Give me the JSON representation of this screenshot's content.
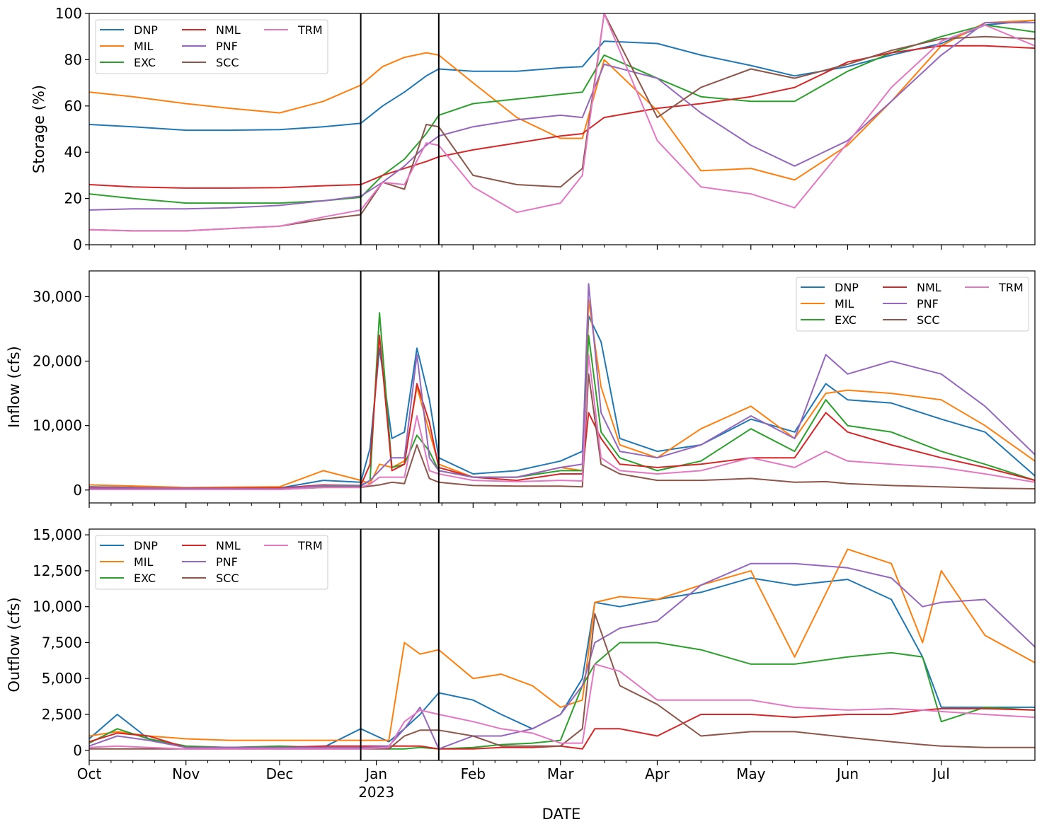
{
  "chart_data": [
    {
      "type": "line",
      "ylabel": "Storage (%)",
      "xlabel": "",
      "ylim": [
        0,
        100
      ],
      "yticks": [
        "0",
        "20",
        "40",
        "60",
        "80",
        "100"
      ],
      "legend_position": "upper-left",
      "legend_columns": 3,
      "x": [
        "2022-10-01",
        "2022-10-15",
        "2022-11-01",
        "2022-11-15",
        "2022-12-01",
        "2022-12-15",
        "2022-12-27",
        "2023-01-03",
        "2023-01-10",
        "2023-01-17",
        "2023-01-21",
        "2023-02-01",
        "2023-02-15",
        "2023-03-01",
        "2023-03-08",
        "2023-03-15",
        "2023-04-01",
        "2023-04-15",
        "2023-05-01",
        "2023-05-15",
        "2023-06-01",
        "2023-06-15",
        "2023-07-01",
        "2023-07-15",
        "2023-07-31"
      ],
      "series": [
        {
          "name": "DNP",
          "color": "#1f77b4",
          "values": [
            52,
            51,
            49.5,
            49.5,
            49.8,
            51,
            52.5,
            60,
            66,
            73,
            76,
            75,
            75,
            76.5,
            77,
            88,
            87,
            82,
            77.5,
            73,
            77,
            82,
            87,
            95,
            97
          ]
        },
        {
          "name": "MIL",
          "color": "#ff7f0e",
          "values": [
            66,
            64,
            61,
            59,
            57,
            62,
            69,
            77,
            81,
            83,
            82,
            70,
            55,
            46,
            46,
            80,
            58,
            32,
            33,
            28,
            43,
            62,
            86,
            96,
            97
          ]
        },
        {
          "name": "EXC",
          "color": "#2ca02c",
          "values": [
            22,
            20,
            18,
            18,
            18,
            19,
            20.5,
            30,
            37,
            48,
            56,
            61,
            63,
            65,
            66,
            82,
            72,
            64,
            62,
            62,
            75,
            83,
            90,
            95,
            92
          ]
        },
        {
          "name": "NML",
          "color": "#d62728",
          "values": [
            26,
            25,
            24.5,
            24.5,
            24.7,
            25.5,
            26,
            30,
            33,
            36,
            38,
            41,
            44,
            47,
            48,
            55,
            59,
            61,
            64,
            68,
            79,
            83,
            86,
            86,
            85
          ]
        },
        {
          "name": "PNF",
          "color": "#9467bd",
          "values": [
            15,
            15.5,
            15.5,
            16,
            17,
            19,
            21,
            27,
            34,
            43,
            47,
            51,
            54,
            56,
            55,
            78,
            72,
            57,
            43,
            34,
            45,
            62,
            82,
            96,
            96
          ]
        },
        {
          "name": "SCC",
          "color": "#8c564b",
          "values": [
            6.5,
            6,
            6,
            7,
            8,
            11,
            13,
            27,
            24,
            52,
            51,
            30,
            26,
            25,
            33,
            100,
            55,
            68,
            76,
            72,
            78,
            84,
            89,
            90,
            89
          ]
        },
        {
          "name": "TRM",
          "color": "#e377c2",
          "values": [
            6.5,
            6,
            6,
            7,
            8,
            12,
            15,
            27,
            26,
            44,
            43,
            25,
            14,
            18,
            30,
            100,
            45,
            25,
            22,
            16,
            44,
            68,
            88,
            95,
            86
          ]
        }
      ]
    },
    {
      "type": "line",
      "ylabel": "Inflow (cfs)",
      "xlabel": "",
      "ylim": [
        -2000,
        34000
      ],
      "yticks": [
        "0",
        "10,000",
        "20,000",
        "30,000"
      ],
      "legend_position": "upper-right",
      "legend_columns": 3,
      "x": [
        "2022-10-01",
        "2022-11-01",
        "2022-12-01",
        "2022-12-15",
        "2022-12-27",
        "2022-12-30",
        "2023-01-02",
        "2023-01-06",
        "2023-01-10",
        "2023-01-14",
        "2023-01-18",
        "2023-01-21",
        "2023-02-01",
        "2023-02-15",
        "2023-03-01",
        "2023-03-08",
        "2023-03-10",
        "2023-03-14",
        "2023-03-20",
        "2023-04-01",
        "2023-04-15",
        "2023-05-01",
        "2023-05-15",
        "2023-05-25",
        "2023-06-01",
        "2023-06-15",
        "2023-07-01",
        "2023-07-15",
        "2023-07-31"
      ],
      "series": [
        {
          "name": "DNP",
          "color": "#1f77b4",
          "values": [
            500,
            300,
            300,
            1500,
            1200,
            6500,
            22000,
            8000,
            9000,
            22000,
            14000,
            5000,
            2500,
            3000,
            4500,
            6000,
            27000,
            23000,
            8000,
            6000,
            7000,
            11000,
            9000,
            16500,
            14000,
            13500,
            11000,
            9000,
            2200
          ]
        },
        {
          "name": "MIL",
          "color": "#ff7f0e",
          "values": [
            800,
            400,
            500,
            3000,
            1500,
            1000,
            4000,
            3500,
            4500,
            16000,
            9000,
            4000,
            2000,
            2000,
            3500,
            3000,
            29500,
            16000,
            7000,
            5000,
            9500,
            13000,
            8000,
            15000,
            15500,
            15000,
            14000,
            10000,
            4500
          ]
        },
        {
          "name": "EXC",
          "color": "#2ca02c",
          "values": [
            300,
            200,
            200,
            600,
            600,
            1500,
            27500,
            3500,
            4000,
            8500,
            6000,
            3000,
            2000,
            2000,
            3000,
            3000,
            24000,
            9000,
            5000,
            3000,
            4500,
            9500,
            6000,
            14000,
            10000,
            9000,
            6000,
            4000,
            1500
          ]
        },
        {
          "name": "NML",
          "color": "#d62728",
          "values": [
            400,
            300,
            300,
            800,
            700,
            4000,
            24000,
            3000,
            4000,
            16500,
            10500,
            3500,
            2000,
            1500,
            2500,
            2500,
            12000,
            8000,
            4000,
            3500,
            4000,
            5000,
            5000,
            12000,
            9000,
            7000,
            5000,
            3500,
            1500
          ]
        },
        {
          "name": "PNF",
          "color": "#9467bd",
          "values": [
            300,
            300,
            200,
            700,
            700,
            1500,
            3000,
            5000,
            5000,
            21000,
            5000,
            3000,
            2000,
            2000,
            3500,
            4000,
            32000,
            12000,
            6000,
            5000,
            7000,
            11500,
            8000,
            21000,
            18000,
            20000,
            18000,
            13000,
            5500
          ]
        },
        {
          "name": "SCC",
          "color": "#8c564b",
          "values": [
            100,
            100,
            100,
            400,
            400,
            600,
            800,
            1200,
            1000,
            7000,
            1800,
            1200,
            700,
            600,
            600,
            500,
            18000,
            4000,
            2500,
            1500,
            1500,
            1800,
            1200,
            1300,
            1000,
            700,
            500,
            300,
            200
          ]
        },
        {
          "name": "TRM",
          "color": "#e377c2",
          "values": [
            100,
            100,
            100,
            400,
            400,
            900,
            2000,
            2000,
            2000,
            11500,
            3000,
            2500,
            1500,
            1300,
            1500,
            1400,
            21000,
            5000,
            3000,
            2500,
            3000,
            5000,
            3500,
            6000,
            4500,
            4000,
            3500,
            2500,
            1200
          ]
        }
      ]
    },
    {
      "type": "line",
      "ylabel": "Outflow (cfs)",
      "xlabel": "DATE",
      "ylim": [
        -700,
        15400
      ],
      "yticks": [
        "0",
        "2,500",
        "5,000",
        "7,500",
        "10,000",
        "12,500",
        "15,000"
      ],
      "xticks": [
        "Oct",
        "Nov",
        "Dec",
        "Jan",
        "Feb",
        "Mar",
        "Apr",
        "May",
        "Jun",
        "Jul"
      ],
      "xtick_sublabel": "2023",
      "legend_position": "upper-left",
      "legend_columns": 3,
      "x": [
        "2022-10-01",
        "2022-10-10",
        "2022-10-20",
        "2022-11-01",
        "2022-11-15",
        "2022-12-01",
        "2022-12-15",
        "2022-12-27",
        "2023-01-05",
        "2023-01-10",
        "2023-01-15",
        "2023-01-21",
        "2023-02-01",
        "2023-02-10",
        "2023-02-20",
        "2023-03-01",
        "2023-03-08",
        "2023-03-12",
        "2023-03-20",
        "2023-04-01",
        "2023-04-15",
        "2023-05-01",
        "2023-05-15",
        "2023-06-01",
        "2023-06-15",
        "2023-06-25",
        "2023-07-01",
        "2023-07-15",
        "2023-07-31"
      ],
      "series": [
        {
          "name": "DNP",
          "color": "#1f77b4",
          "values": [
            800,
            2500,
            800,
            200,
            200,
            200,
            200,
            1500,
            600,
            1500,
            2500,
            4000,
            3500,
            2500,
            1500,
            2500,
            5000,
            10300,
            10000,
            10500,
            11000,
            12000,
            11500,
            11900,
            10500,
            6500,
            3000,
            3000,
            3000
          ]
        },
        {
          "name": "MIL",
          "color": "#ff7f0e",
          "values": [
            1000,
            1300,
            1000,
            800,
            700,
            700,
            700,
            700,
            700,
            7500,
            6700,
            7000,
            5000,
            5300,
            4500,
            3000,
            3500,
            10300,
            10700,
            10500,
            11500,
            12500,
            6500,
            14000,
            13000,
            7500,
            12500,
            8000,
            6100
          ]
        },
        {
          "name": "EXC",
          "color": "#2ca02c",
          "values": [
            500,
            1500,
            800,
            300,
            200,
            300,
            200,
            200,
            100,
            100,
            200,
            100,
            200,
            400,
            500,
            700,
            4500,
            6000,
            7500,
            7500,
            7000,
            6000,
            6000,
            6500,
            6800,
            6500,
            2000,
            3000,
            2800
          ]
        },
        {
          "name": "NML",
          "color": "#d62728",
          "values": [
            600,
            1200,
            1000,
            200,
            200,
            200,
            300,
            300,
            300,
            300,
            300,
            100,
            100,
            200,
            200,
            300,
            100,
            1500,
            1500,
            1000,
            2500,
            2500,
            2300,
            2500,
            2500,
            2800,
            2900,
            2900,
            2800
          ]
        },
        {
          "name": "PNF",
          "color": "#9467bd",
          "values": [
            300,
            1000,
            700,
            200,
            200,
            200,
            200,
            200,
            300,
            1500,
            3000,
            100,
            1000,
            1000,
            1500,
            2500,
            4500,
            7500,
            8500,
            9000,
            11500,
            13000,
            13000,
            12700,
            12000,
            10000,
            10300,
            10500,
            7200
          ]
        },
        {
          "name": "SCC",
          "color": "#8c564b",
          "values": [
            100,
            100,
            100,
            100,
            100,
            100,
            100,
            100,
            100,
            1000,
            1400,
            1400,
            1000,
            300,
            300,
            300,
            1500,
            9500,
            4500,
            3200,
            1000,
            1300,
            1300,
            900,
            600,
            400,
            300,
            200,
            200
          ]
        },
        {
          "name": "TRM",
          "color": "#e377c2",
          "values": [
            200,
            300,
            200,
            100,
            100,
            100,
            100,
            100,
            200,
            2000,
            2800,
            2500,
            2000,
            1500,
            1200,
            500,
            500,
            6000,
            5500,
            3500,
            3500,
            3500,
            3000,
            2800,
            2900,
            2800,
            2700,
            2500,
            2300
          ]
        }
      ]
    }
  ],
  "vertical_markers": [
    "2022-12-27",
    "2023-01-21"
  ]
}
